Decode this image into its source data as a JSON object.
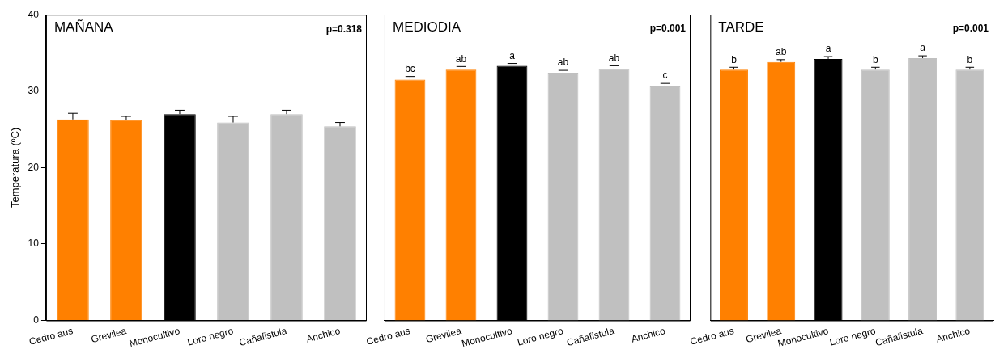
{
  "chart_data": [
    {
      "type": "bar",
      "title": "MAÑANA",
      "ylabel": "Temperatura (ºC)",
      "categories": [
        "Cedro aus",
        "Grevilea",
        "Monocultivo",
        "Loro negro",
        "Cañafistula",
        "Anchico"
      ],
      "values": [
        26.3,
        26.2,
        27.0,
        25.9,
        27.0,
        25.4
      ],
      "errors": [
        [
          26.3,
          27.1
        ],
        [
          26.2,
          26.7
        ],
        [
          27.0,
          27.5
        ],
        [
          25.9,
          26.7
        ],
        [
          27.0,
          27.5
        ],
        [
          25.4,
          25.9
        ]
      ],
      "colors": [
        "#ff8000",
        "#ff8000",
        "#000000",
        "#c0c0c0",
        "#c0c0c0",
        "#c0c0c0"
      ],
      "ylim": [
        0,
        40
      ],
      "yticks": [
        0,
        10,
        20,
        30,
        40
      ],
      "grid": false,
      "legend": false,
      "annotations": [
        "p=0.318"
      ]
    },
    {
      "type": "bar",
      "title": "MEDIODIA",
      "categories": [
        "Cedro aus",
        "Grevilea",
        "Monocultivo",
        "Loro negro",
        "Cañafistula",
        "Anchico"
      ],
      "values": [
        31.5,
        32.8,
        33.3,
        32.4,
        32.9,
        30.6
      ],
      "errors": [
        [
          31.5,
          31.9
        ],
        [
          32.8,
          33.2
        ],
        [
          33.3,
          33.6
        ],
        [
          32.4,
          32.7
        ],
        [
          32.9,
          33.3
        ],
        [
          30.6,
          31.0
        ]
      ],
      "colors": [
        "#ff8000",
        "#ff8000",
        "#000000",
        "#c0c0c0",
        "#c0c0c0",
        "#c0c0c0"
      ],
      "ylim": [
        0,
        40
      ],
      "yticks": [
        0,
        10,
        20,
        30,
        40
      ],
      "tick_labels": "x",
      "grid": false,
      "legend": false,
      "annotations": [
        "p=0.001",
        {
          "text": "bc",
          "x": "Cedro aus",
          "y": 31.9
        },
        {
          "text": "ab",
          "x": "Grevilea",
          "y": 33.2
        },
        {
          "text": "a",
          "x": "Monocultivo",
          "y": 33.6
        },
        {
          "text": "ab",
          "x": "Loro negro",
          "y": 32.7
        },
        {
          "text": "ab",
          "x": "Cañafistula",
          "y": 33.3
        },
        {
          "text": "c",
          "x": "Anchico",
          "y": 31.0
        }
      ]
    },
    {
      "type": "bar",
      "title": "TARDE",
      "categories": [
        "Cedro aus",
        "Grevilea",
        "Monocultivo",
        "Loro negro",
        "Cañafistula",
        "Anchico"
      ],
      "values": [
        32.8,
        33.8,
        34.2,
        32.8,
        34.3,
        32.8
      ],
      "errors": [
        [
          32.8,
          33.1
        ],
        [
          33.8,
          34.1
        ],
        [
          34.2,
          34.5
        ],
        [
          32.8,
          33.1
        ],
        [
          34.3,
          34.6
        ],
        [
          32.8,
          33.1
        ]
      ],
      "colors": [
        "#ff8000",
        "#ff8000",
        "#000000",
        "#c0c0c0",
        "#c0c0c0",
        "#c0c0c0"
      ],
      "ylim": [
        0,
        40
      ],
      "yticks": [
        0,
        10,
        20,
        30,
        40
      ],
      "tick_labels": "x",
      "grid": false,
      "legend": false,
      "annotations": [
        "p=0.001",
        {
          "text": "b",
          "x": "Cedro aus",
          "y": 33.1
        },
        {
          "text": "ab",
          "x": "Grevilea",
          "y": 34.1
        },
        {
          "text": "a",
          "x": "Monocultivo",
          "y": 34.5
        },
        {
          "text": "b",
          "x": "Loro negro",
          "y": 33.1
        },
        {
          "text": "a",
          "x": "Cañafistula",
          "y": 34.6
        },
        {
          "text": "b",
          "x": "Anchico",
          "y": 33.1
        }
      ]
    }
  ]
}
